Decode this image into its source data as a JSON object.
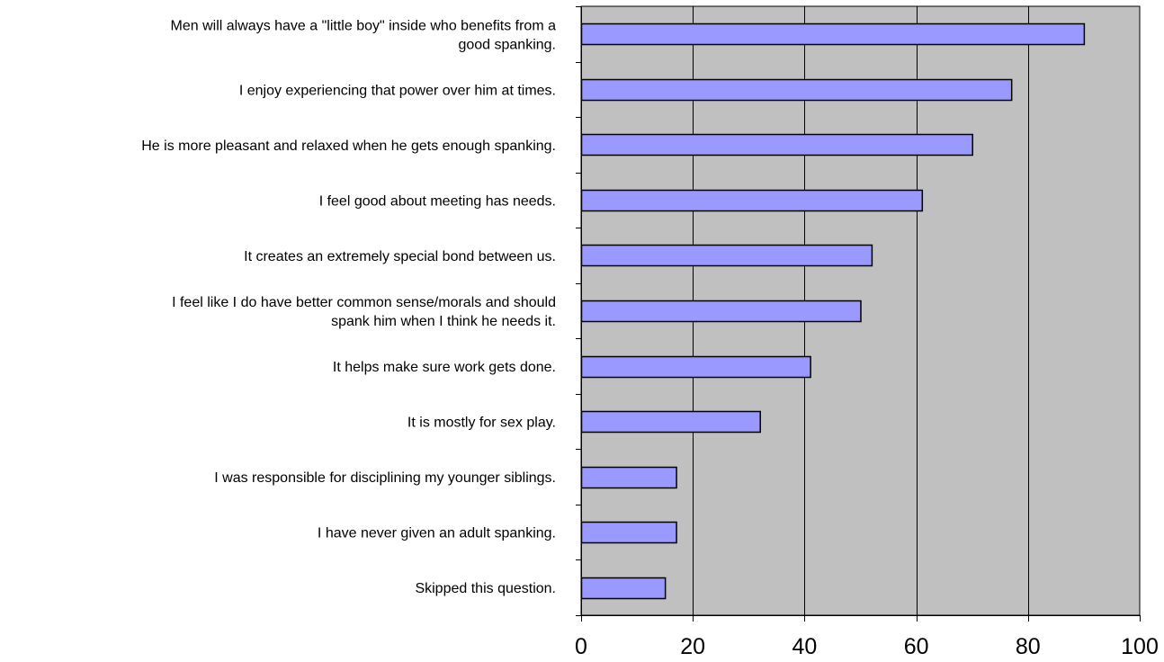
{
  "chart_data": {
    "type": "bar",
    "orientation": "horizontal",
    "title": "",
    "xlabel": "",
    "ylabel": "",
    "categories": [
      "Men will always have a \"little boy\" inside who benefits from a good spanking.",
      "I enjoy experiencing that power over him at times.",
      "He is more pleasant and relaxed when he gets enough spanking.",
      "I feel good about meeting has needs.",
      "It creates an extremely special bond between us.",
      "I feel like I do have better common sense/morals and should spank him when I think he needs it.",
      "It helps make sure work gets done.",
      "It is mostly for sex play.",
      "I was responsible for disciplining my younger siblings.",
      "I have never given an adult spanking.",
      "Skipped this question."
    ],
    "category_lines": [
      [
        "Men will always have a \"little boy\" inside who benefits from a",
        "good spanking."
      ],
      [
        "I enjoy experiencing that power over him at times."
      ],
      [
        "He is more pleasant and relaxed when he gets enough spanking."
      ],
      [
        "I feel good about meeting has needs."
      ],
      [
        "It creates an extremely special bond between us."
      ],
      [
        "I feel like I do have better common sense/morals and should",
        "spank him when I think he needs it."
      ],
      [
        "It helps make sure work gets done."
      ],
      [
        "It is mostly for sex play."
      ],
      [
        "I was responsible for disciplining my younger siblings."
      ],
      [
        "I have never given an adult spanking."
      ],
      [
        "Skipped this question."
      ]
    ],
    "values": [
      90,
      77,
      70,
      61,
      52,
      50,
      41,
      32,
      17,
      17,
      15
    ],
    "xlim": [
      0,
      100
    ],
    "xticks": [
      0,
      20,
      40,
      60,
      80,
      100
    ],
    "grid": "vertical",
    "legend": "none",
    "colors": {
      "bar_fill": "#9999ff",
      "bar_stroke": "#000000",
      "plot_background": "#c0c0c0",
      "gridline": "#000000",
      "axis": "#000000"
    }
  }
}
